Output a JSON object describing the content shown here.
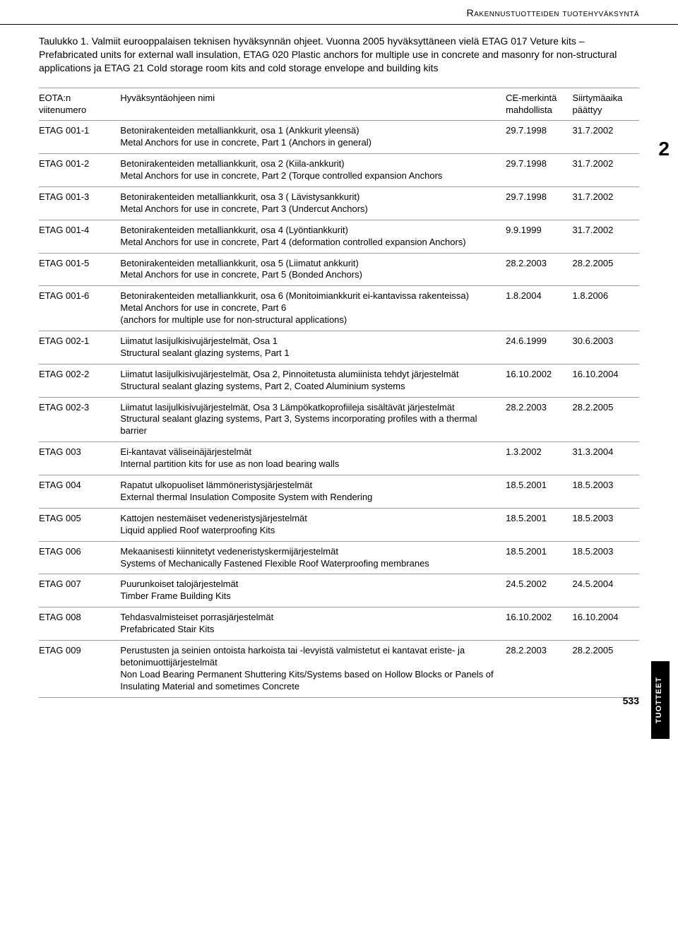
{
  "header": "Rakennustuotteiden tuotehyväksyntä",
  "intro": "Taulukko 1. Valmiit eurooppalaisen teknisen hyväksynnän ohjeet. Vuonna 2005 hyväksyttäneen vielä ETAG 017 Veture kits – Prefabricated units for external wall insulation, ETAG 020 Plastic anchors for multiple use in concrete and masonry for non-structural applications ja ETAG 21 Cold storage room kits and cold storage envelope and building kits",
  "columns": {
    "c1a": "EOTA:n",
    "c1b": "viitenumero",
    "c2": "Hyväksyntäohjeen nimi",
    "c3a": "CE-merkintä",
    "c3b": "mahdollista",
    "c4a": "Siirtymäaika",
    "c4b": "päättyy"
  },
  "rows": [
    {
      "id": "ETAG 001-1",
      "desc": "Betonirakenteiden metalliankkurit, osa 1 (Ankkurit yleensä)\nMetal Anchors for use in concrete, Part 1 (Anchors in general)",
      "d1": "29.7.1998",
      "d2": "31.7.2002"
    },
    {
      "id": "ETAG 001-2",
      "desc": "Betonirakenteiden metalliankkurit, osa 2 (Kiila-ankkurit)\nMetal Anchors for use in concrete, Part 2 (Torque controlled expansion Anchors",
      "d1": "29.7.1998",
      "d2": "31.7.2002"
    },
    {
      "id": "ETAG 001-3",
      "desc": "Betonirakenteiden metalliankkurit, osa 3 ( Lävistysankkurit)\nMetal Anchors for use in concrete, Part 3 (Undercut Anchors)",
      "d1": "29.7.1998",
      "d2": "31.7.2002"
    },
    {
      "id": "ETAG 001-4",
      "desc": "Betonirakenteiden metalliankkurit, osa 4 (Lyöntiankkurit)\nMetal Anchors for use in concrete, Part 4 (deformation controlled expansion Anchors)",
      "d1": "9.9.1999",
      "d2": "31.7.2002"
    },
    {
      "id": "ETAG 001-5",
      "desc": "Betonirakenteiden metalliankkurit, osa 5 (Liimatut ankkurit)\nMetal Anchors for use in concrete, Part 5 (Bonded Anchors)",
      "d1": "28.2.2003",
      "d2": "28.2.2005"
    },
    {
      "id": "ETAG 001-6",
      "desc": "Betonirakenteiden metalliankkurit, osa 6 (Monitoimiankkurit ei-kantavissa rakenteissa)\nMetal Anchors for use in concrete, Part 6\n(anchors for multiple use for non-structural applications)",
      "d1": "1.8.2004",
      "d2": "1.8.2006"
    },
    {
      "id": "ETAG 002-1",
      "desc": "Liimatut lasijulkisivujärjestelmät, Osa 1\nStructural sealant glazing systems, Part 1",
      "d1": "24.6.1999",
      "d2": "30.6.2003"
    },
    {
      "id": "ETAG 002-2",
      "desc": "Liimatut lasijulkisivujärjestelmät, Osa 2, Pinnoitetusta alumiinista tehdyt järjestelmät\nStructural sealant glazing systems, Part 2, Coated Aluminium systems",
      "d1": "16.10.2002",
      "d2": "16.10.2004"
    },
    {
      "id": "ETAG 002-3",
      "desc": "Liimatut lasijulkisivujärjestelmät, Osa 3 Lämpökatkoprofiileja sisältävät järjestelmät\nStructural sealant glazing systems, Part 3, Systems incorporating profiles with a thermal barrier",
      "d1": "28.2.2003",
      "d2": "28.2.2005"
    },
    {
      "id": "ETAG 003",
      "desc": "Ei-kantavat väliseinäjärjestelmät\nInternal partition kits for use as non load bearing walls",
      "d1": "1.3.2002",
      "d2": "31.3.2004"
    },
    {
      "id": "ETAG 004",
      "desc": "Rapatut ulkopuoliset lämmöneristysjärjestelmät\nExternal thermal Insulation Composite System with Rendering",
      "d1": "18.5.2001",
      "d2": "18.5.2003"
    },
    {
      "id": "ETAG 005",
      "desc": "Kattojen nestemäiset vedeneristysjärjestelmät\nLiquid applied Roof waterproofing Kits",
      "d1": "18.5.2001",
      "d2": "18.5.2003"
    },
    {
      "id": "ETAG 006",
      "desc": "Mekaanisesti kiinnitetyt vedeneristyskermijärjestelmät\nSystems of Mechanically Fastened Flexible Roof Waterproofing membranes",
      "d1": "18.5.2001",
      "d2": "18.5.2003"
    },
    {
      "id": "ETAG 007",
      "desc": "Puurunkoiset talojärjestelmät\nTimber Frame Building Kits",
      "d1": "24.5.2002",
      "d2": "24.5.2004"
    },
    {
      "id": "ETAG 008",
      "desc": "Tehdasvalmisteiset porrasjärjestelmät\nPrefabricated Stair Kits",
      "d1": "16.10.2002",
      "d2": "16.10.2004"
    },
    {
      "id": "ETAG 009",
      "desc": "Perustusten ja seinien ontoista harkoista tai -levyistä valmistetut ei kantavat eriste- ja betonimuottijärjestelmät\nNon Load Bearing Permanent Shuttering Kits/Systems based on Hollow Blocks or Panels of Insulating Material and sometimes Concrete",
      "d1": "28.2.2003",
      "d2": "28.2.2005"
    }
  ],
  "side_number": "2",
  "side_label": "TUOTTEET",
  "page_number": "533"
}
